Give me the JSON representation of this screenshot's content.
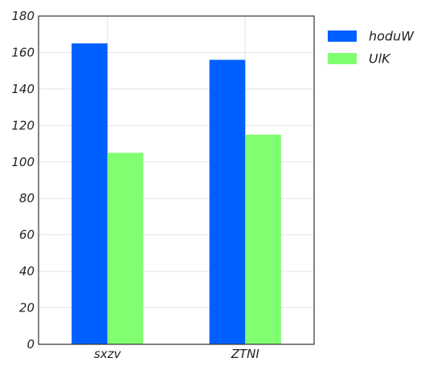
{
  "chart_data": {
    "type": "bar",
    "categories": [
      "sxzv",
      "ZTNI"
    ],
    "series": [
      {
        "name": "hoduW",
        "values": [
          165,
          156
        ],
        "color": "#0060ff"
      },
      {
        "name": "UlK",
        "values": [
          105,
          115
        ],
        "color": "#80ff70"
      }
    ],
    "title": "",
    "xlabel": "",
    "ylabel": "",
    "ylim": [
      0,
      180
    ],
    "yticks": [
      0,
      20,
      40,
      60,
      80,
      100,
      120,
      140,
      160,
      180
    ],
    "grid": true,
    "legend_position": "outside-right-top"
  }
}
